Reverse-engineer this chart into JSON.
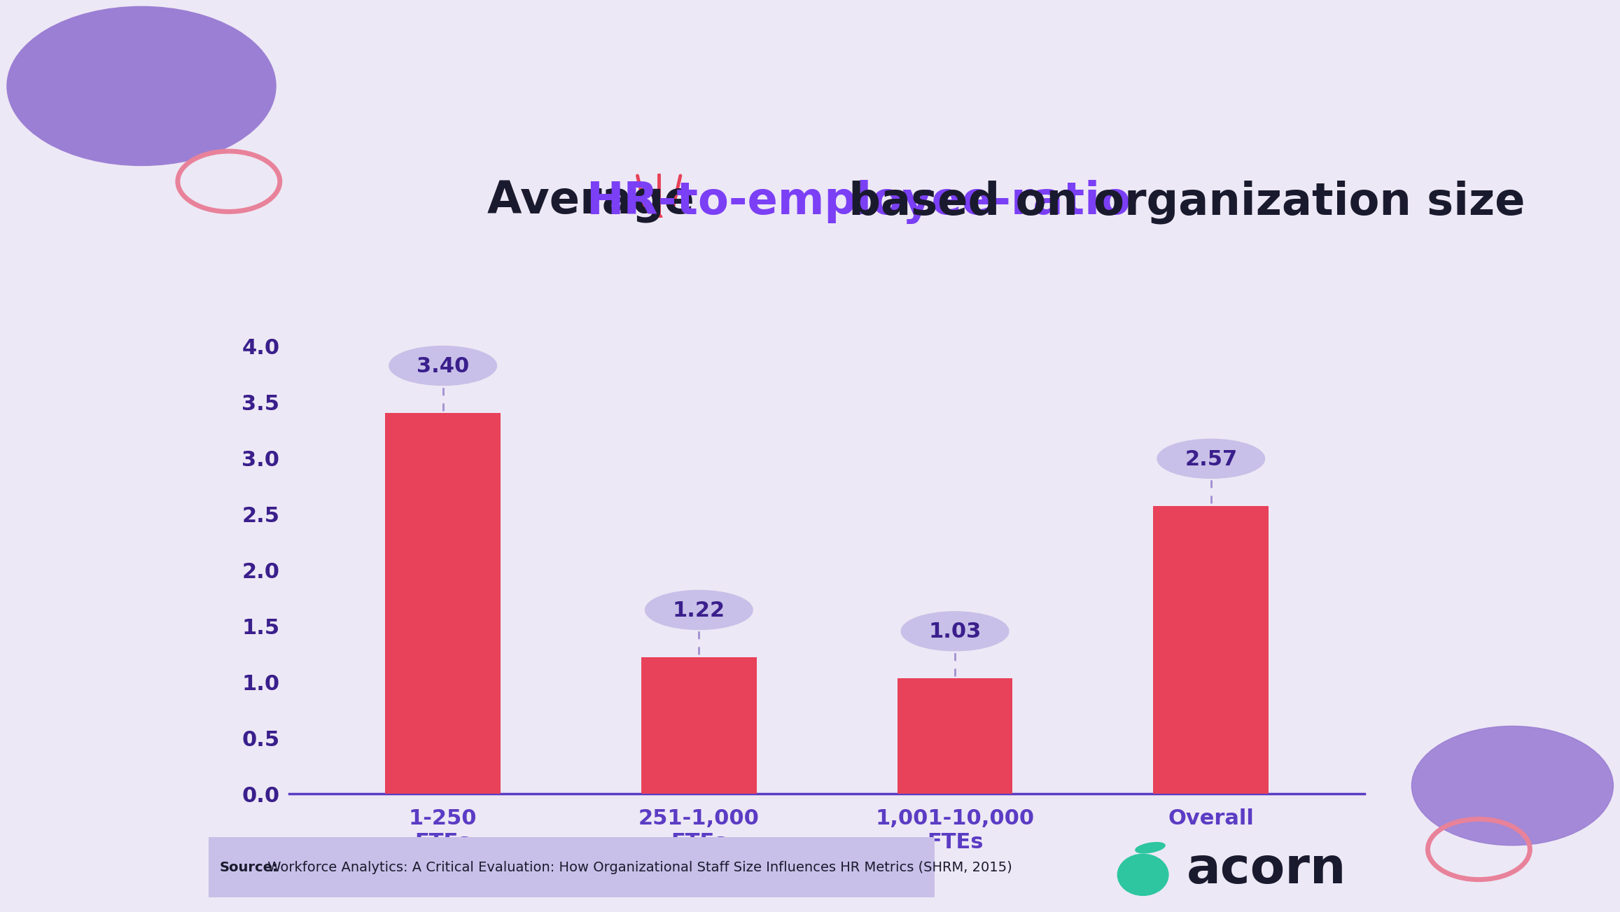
{
  "title_part1": "Average ",
  "title_part2": "HR-to-employee-ratio",
  "title_part3": " based on organization size",
  "categories": [
    "1-250\nFTEs",
    "251-1,000\nFTEs",
    "1,001-10,000\nFTEs",
    "Overall"
  ],
  "values": [
    3.4,
    1.22,
    1.03,
    2.57
  ],
  "bar_color": "#E8415A",
  "bubble_color": "#C8C0E8",
  "bubble_text_color": "#3A1F8C",
  "label_color": "#5B3CC4",
  "axis_line_color": "#5B3CC4",
  "tick_color": "#3A1F8C",
  "background_color": "#EDE8F5",
  "title_color1": "#1A1A2E",
  "title_color2": "#7B3FF5",
  "ylim": [
    0,
    4.4
  ],
  "yticks": [
    0.0,
    0.5,
    1.0,
    1.5,
    2.0,
    2.5,
    3.0,
    3.5,
    4.0
  ],
  "source_text_bold": "Source:",
  "source_text_normal": " Workforce Analytics: A Critical Evaluation: How Organizational Staff Size Influences HR Metrics (SHRM, 2015)",
  "source_bg": "#C8C0E8",
  "acorn_color": "#2DC6A0",
  "acorn_text": "acorn",
  "acorn_text_color": "#1A1A2E",
  "title_fontsize": 46,
  "tick_fontsize": 22,
  "label_fontsize": 22,
  "bubble_fontsize": 22,
  "source_fontsize": 14,
  "acorn_fontsize": 52
}
